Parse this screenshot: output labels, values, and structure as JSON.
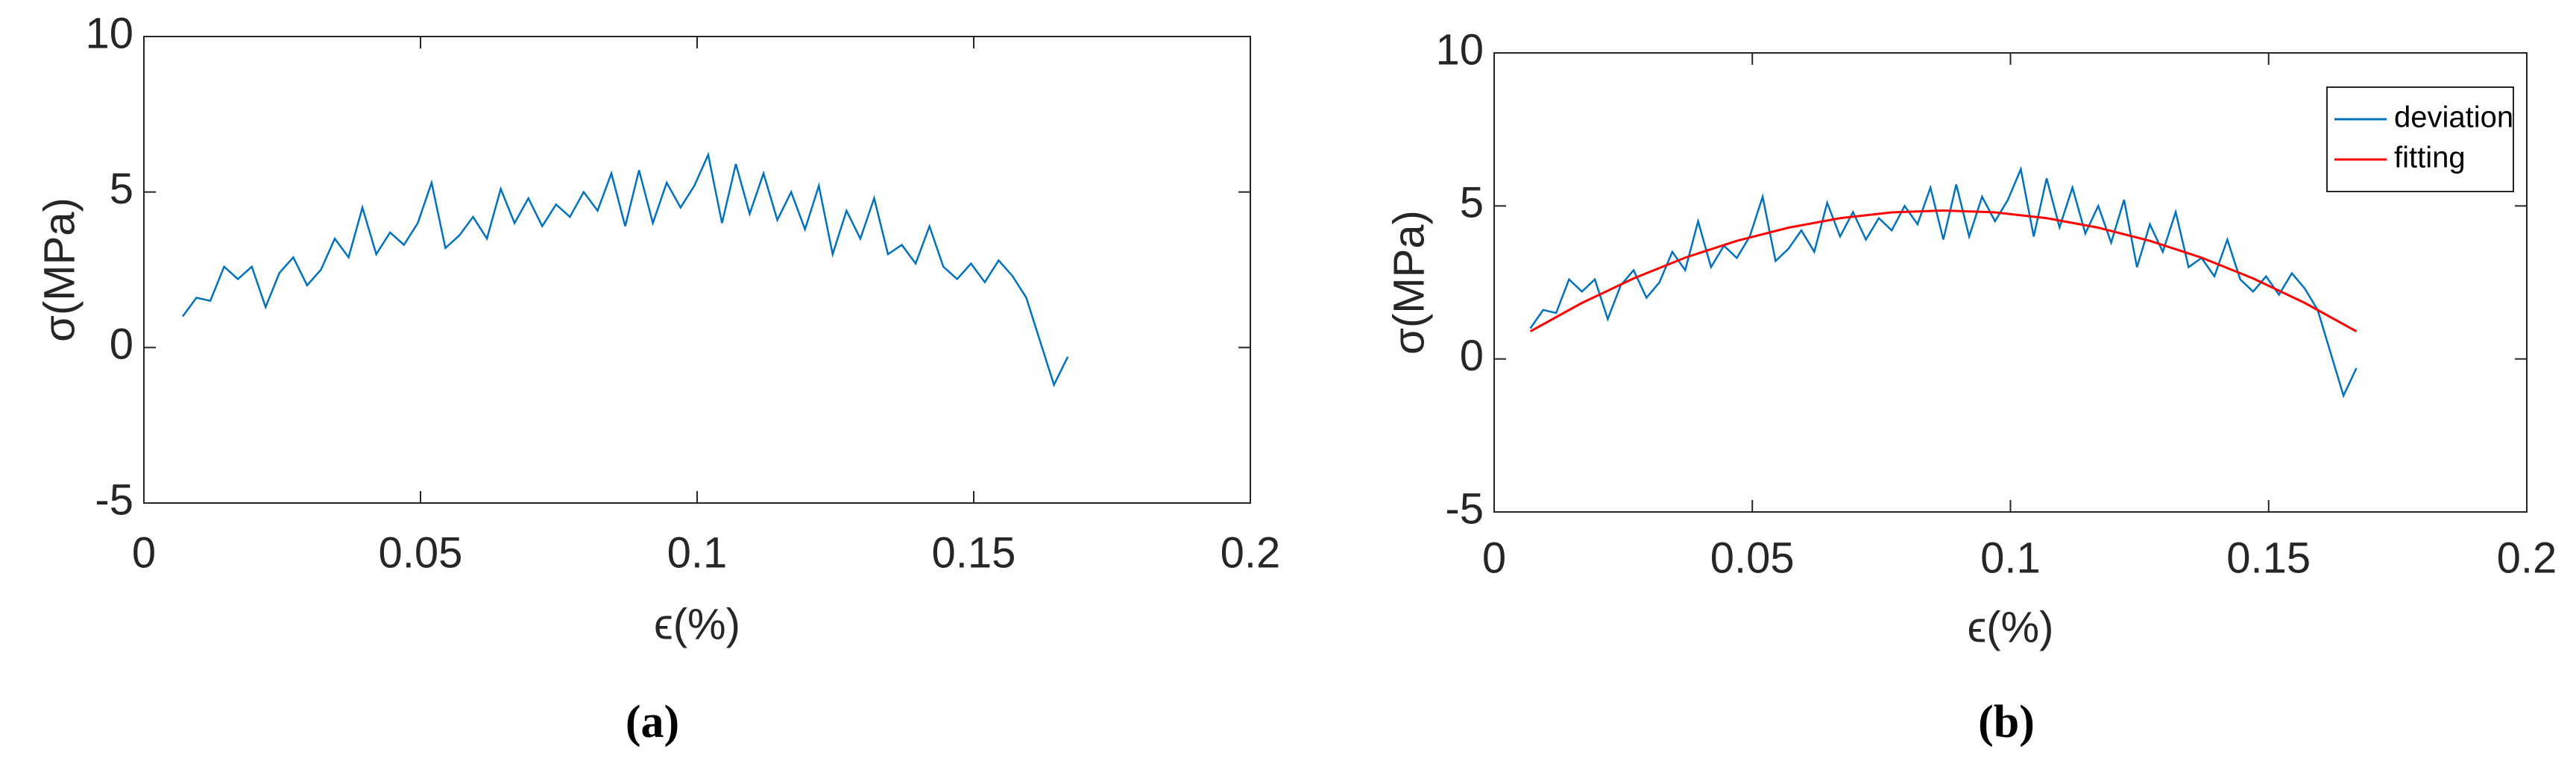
{
  "chart_data": [
    {
      "type": "line",
      "label": "(a)",
      "x_label": "ϵ(%)",
      "y_label": "σ(MPa)",
      "xlim": [
        0,
        0.2
      ],
      "xticks": [
        0,
        0.05,
        0.1,
        0.15,
        0.2
      ],
      "ylim": [
        -5,
        10
      ],
      "yticks": [
        -5,
        0,
        5,
        10
      ],
      "series": [
        {
          "color": "#0072bd",
          "x": [
            0.007,
            0.0095,
            0.012,
            0.0145,
            0.017,
            0.0195,
            0.022,
            0.0245,
            0.027,
            0.0295,
            0.032,
            0.0345,
            0.037,
            0.0395,
            0.042,
            0.0445,
            0.047,
            0.0495,
            0.052,
            0.0545,
            0.057,
            0.0595,
            0.062,
            0.0645,
            0.067,
            0.0695,
            0.072,
            0.0745,
            0.077,
            0.0795,
            0.082,
            0.0845,
            0.087,
            0.0895,
            0.092,
            0.0945,
            0.097,
            0.0995,
            0.102,
            0.1045,
            0.107,
            0.1095,
            0.112,
            0.1145,
            0.117,
            0.1195,
            0.122,
            0.1245,
            0.127,
            0.1295,
            0.132,
            0.1345,
            0.137,
            0.1395,
            0.142,
            0.1445,
            0.147,
            0.1495,
            0.152,
            0.1545,
            0.157,
            0.1595,
            0.162,
            0.1645,
            0.167
          ],
          "values": [
            1.0,
            1.6,
            1.5,
            2.6,
            2.2,
            2.6,
            1.3,
            2.4,
            2.9,
            2.0,
            2.5,
            3.5,
            2.9,
            4.5,
            3.0,
            3.7,
            3.3,
            4.0,
            5.3,
            3.2,
            3.6,
            4.2,
            3.5,
            5.1,
            4.0,
            4.8,
            3.9,
            4.6,
            4.2,
            5.0,
            4.4,
            5.6,
            3.9,
            5.7,
            4.0,
            5.3,
            4.5,
            5.2,
            6.2,
            4.0,
            5.9,
            4.3,
            5.6,
            4.1,
            5.0,
            3.8,
            5.2,
            3.0,
            4.4,
            3.5,
            4.8,
            3.0,
            3.3,
            2.7,
            3.9,
            2.6,
            2.2,
            2.7,
            2.1,
            2.8,
            2.3,
            1.6,
            0.2,
            -1.2,
            -0.3
          ]
        }
      ]
    },
    {
      "type": "line",
      "label": "(b)",
      "x_label": "ϵ(%)",
      "y_label": "σ(MPa)",
      "xlim": [
        0,
        0.2
      ],
      "xticks": [
        0,
        0.05,
        0.1,
        0.15,
        0.2
      ],
      "ylim": [
        -5,
        10
      ],
      "yticks": [
        -5,
        0,
        5,
        10
      ],
      "legend": "northeast",
      "series": [
        {
          "name": "deviation",
          "color": "#0072bd",
          "x": [
            0.007,
            0.0095,
            0.012,
            0.0145,
            0.017,
            0.0195,
            0.022,
            0.0245,
            0.027,
            0.0295,
            0.032,
            0.0345,
            0.037,
            0.0395,
            0.042,
            0.0445,
            0.047,
            0.0495,
            0.052,
            0.0545,
            0.057,
            0.0595,
            0.062,
            0.0645,
            0.067,
            0.0695,
            0.072,
            0.0745,
            0.077,
            0.0795,
            0.082,
            0.0845,
            0.087,
            0.0895,
            0.092,
            0.0945,
            0.097,
            0.0995,
            0.102,
            0.1045,
            0.107,
            0.1095,
            0.112,
            0.1145,
            0.117,
            0.1195,
            0.122,
            0.1245,
            0.127,
            0.1295,
            0.132,
            0.1345,
            0.137,
            0.1395,
            0.142,
            0.1445,
            0.147,
            0.1495,
            0.152,
            0.1545,
            0.157,
            0.1595,
            0.162,
            0.1645,
            0.167
          ],
          "values": [
            1.0,
            1.6,
            1.5,
            2.6,
            2.2,
            2.6,
            1.3,
            2.4,
            2.9,
            2.0,
            2.5,
            3.5,
            2.9,
            4.5,
            3.0,
            3.7,
            3.3,
            4.0,
            5.3,
            3.2,
            3.6,
            4.2,
            3.5,
            5.1,
            4.0,
            4.8,
            3.9,
            4.6,
            4.2,
            5.0,
            4.4,
            5.6,
            3.9,
            5.7,
            4.0,
            5.3,
            4.5,
            5.2,
            6.2,
            4.0,
            5.9,
            4.3,
            5.6,
            4.1,
            5.0,
            3.8,
            5.2,
            3.0,
            4.4,
            3.5,
            4.8,
            3.0,
            3.3,
            2.7,
            3.9,
            2.6,
            2.2,
            2.7,
            2.1,
            2.8,
            2.3,
            1.6,
            0.2,
            -1.2,
            -0.3
          ]
        },
        {
          "name": "fitting",
          "color": "#ff0000",
          "x": [
            0.007,
            0.017,
            0.027,
            0.037,
            0.047,
            0.057,
            0.067,
            0.077,
            0.087,
            0.097,
            0.107,
            0.117,
            0.127,
            0.137,
            0.147,
            0.157,
            0.167
          ],
          "values": [
            0.9,
            1.83,
            2.63,
            3.31,
            3.86,
            4.29,
            4.6,
            4.79,
            4.85,
            4.79,
            4.6,
            4.29,
            3.86,
            3.31,
            2.63,
            1.83,
            0.9
          ]
        }
      ]
    }
  ]
}
